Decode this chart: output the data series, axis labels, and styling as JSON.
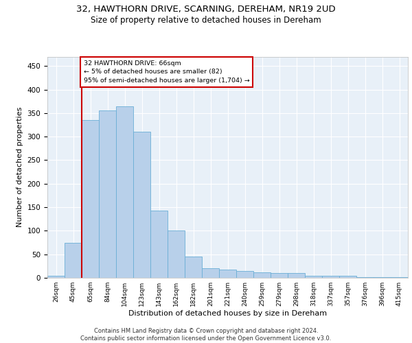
{
  "title_line1": "32, HAWTHORN DRIVE, SCARNING, DEREHAM, NR19 2UD",
  "title_line2": "Size of property relative to detached houses in Dereham",
  "xlabel": "Distribution of detached houses by size in Dereham",
  "ylabel": "Number of detached properties",
  "categories": [
    "26sqm",
    "45sqm",
    "65sqm",
    "84sqm",
    "104sqm",
    "123sqm",
    "143sqm",
    "162sqm",
    "182sqm",
    "201sqm",
    "221sqm",
    "240sqm",
    "259sqm",
    "279sqm",
    "298sqm",
    "318sqm",
    "337sqm",
    "357sqm",
    "376sqm",
    "396sqm",
    "415sqm"
  ],
  "values": [
    5,
    75,
    335,
    355,
    365,
    310,
    143,
    100,
    45,
    20,
    18,
    15,
    12,
    10,
    10,
    5,
    5,
    4,
    2,
    1,
    1
  ],
  "bar_color": "#b8d0ea",
  "bar_edge_color": "#6aaed6",
  "background_color": "#e8f0f8",
  "grid_color": "#ffffff",
  "property_line_x": 1.5,
  "property_line_color": "#cc0000",
  "annotation_text": "32 HAWTHORN DRIVE: 66sqm\n← 5% of detached houses are smaller (82)\n95% of semi-detached houses are larger (1,704) →",
  "annotation_box_color": "#cc0000",
  "footer_line1": "Contains HM Land Registry data © Crown copyright and database right 2024.",
  "footer_line2": "Contains public sector information licensed under the Open Government Licence v3.0.",
  "ylim": [
    0,
    470
  ],
  "xlim_left": -0.5,
  "xlim_right": 20.5,
  "title_fontsize": 9.5,
  "subtitle_fontsize": 8.5,
  "tick_fontsize": 6.5,
  "ylabel_fontsize": 8,
  "xlabel_fontsize": 8,
  "footer_fontsize": 6,
  "ann_fontsize": 6.8,
  "yticks": [
    0,
    50,
    100,
    150,
    200,
    250,
    300,
    350,
    400,
    450
  ]
}
